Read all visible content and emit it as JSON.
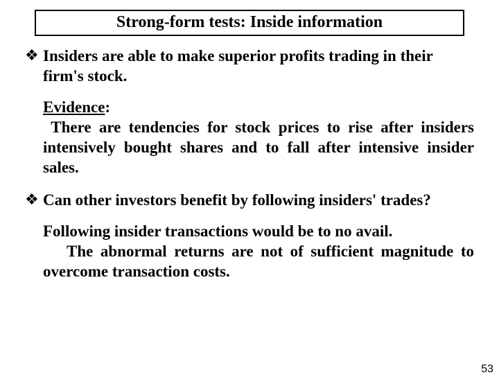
{
  "title": "Strong-form tests: Inside information",
  "bullets": [
    {
      "text": "Insiders are able to make superior profits trading in their firm's stock."
    },
    {
      "text": "Can other investors benefit by following insiders' trades?"
    }
  ],
  "evidence": {
    "label": "Evidence",
    "colon": ":",
    "body": " There are tendencies for stock prices to rise after insiders intensively bought shares and to fall after intensive insider sales."
  },
  "follow": {
    "line1": "Following insider transactions would be to no avail.",
    "rest": "The abnormal returns are not of sufficient magnitude to overcome transaction costs."
  },
  "page_number": "53",
  "bullet_glyph": "❖"
}
